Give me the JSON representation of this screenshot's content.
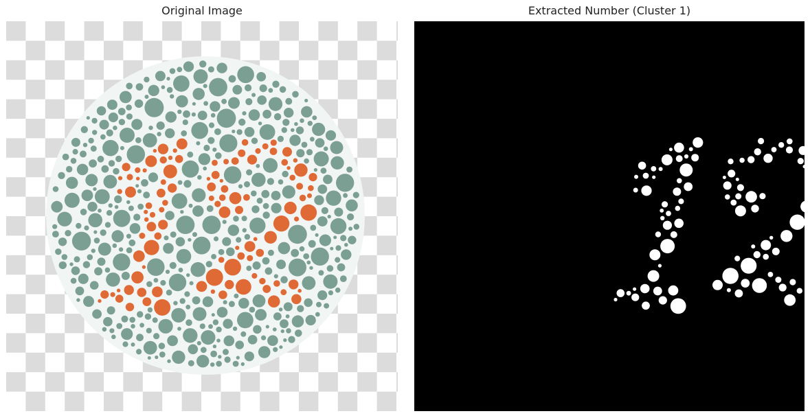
{
  "figure": {
    "left_title": "Original Image",
    "right_title": "Extracted Number (Cluster 1)"
  },
  "plate": {
    "depicted_number": "12",
    "colors": {
      "checker_light": "#ffffff",
      "checker_dark": "#dcdcdc",
      "disc_background": "#f1f5f4",
      "background_dots": "#7c9f94",
      "number_dots": "#e06a35",
      "extracted_background": "#000000",
      "extracted_dots": "#ffffff"
    }
  }
}
